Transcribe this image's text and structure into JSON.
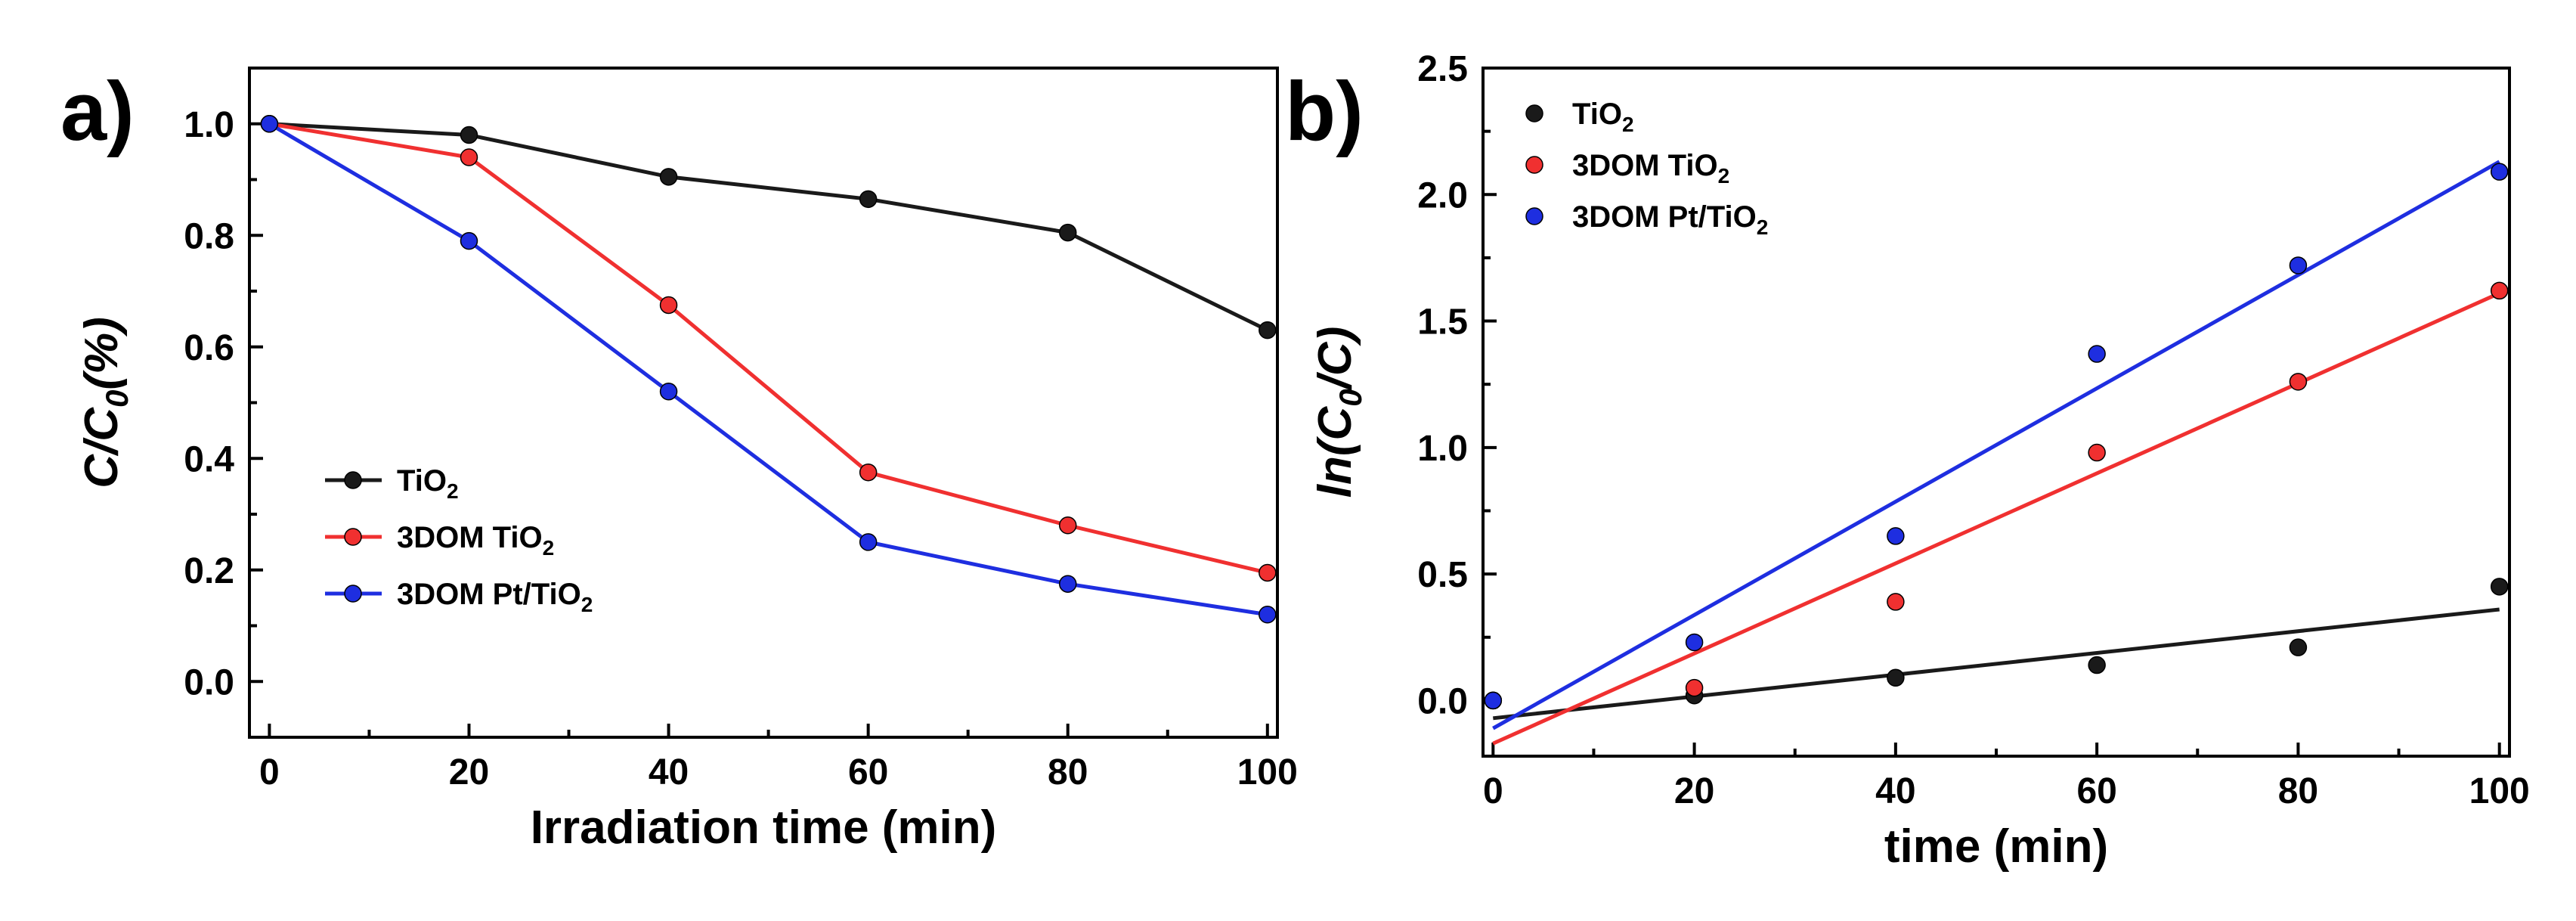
{
  "chart_data": [
    {
      "id": "a",
      "panel_label": "a)",
      "type": "line",
      "xlabel": "Irradiation time (min)",
      "ylabel": {
        "prefix": "C/C",
        "sub": "0",
        "suffix": "(%)"
      },
      "xlim": [
        -2,
        101
      ],
      "ylim": [
        -0.1,
        1.1
      ],
      "xticks": [
        0,
        20,
        40,
        60,
        80,
        100
      ],
      "xtick_labels": [
        "0",
        "20",
        "40",
        "60",
        "80",
        "100"
      ],
      "yticks": [
        0.0,
        0.2,
        0.4,
        0.6,
        0.8,
        1.0
      ],
      "ytick_labels": [
        "0.0",
        "0.2",
        "0.4",
        "0.6",
        "0.8",
        "1.0"
      ],
      "legend_position": "lower-left",
      "x": [
        0,
        20,
        40,
        60,
        80,
        100
      ],
      "series": [
        {
          "name": "TiO2",
          "label": {
            "main": "TiO",
            "sub": "2",
            "tail": ""
          },
          "color": "#1a1a1a",
          "values": [
            1.0,
            0.98,
            0.905,
            0.865,
            0.805,
            0.63
          ]
        },
        {
          "name": "3DOM TiO2",
          "label": {
            "main": "3DOM TiO",
            "sub": "2",
            "tail": ""
          },
          "color": "#f03030",
          "values": [
            1.0,
            0.94,
            0.675,
            0.375,
            0.28,
            0.195
          ]
        },
        {
          "name": "3DOM Pt/TiO2",
          "label": {
            "main": "3DOM Pt/TiO",
            "sub": "2",
            "tail": ""
          },
          "color": "#1e2ee0",
          "values": [
            1.0,
            0.79,
            0.52,
            0.25,
            0.175,
            0.12
          ]
        }
      ]
    },
    {
      "id": "b",
      "panel_label": "b)",
      "type": "scatter",
      "xlabel": "time (min)",
      "ylabel": {
        "prefix": "ln(C",
        "sub": "0",
        "suffix": "/C)"
      },
      "xlim": [
        -1,
        101
      ],
      "ylim": [
        -0.22,
        2.5
      ],
      "xticks": [
        0,
        20,
        40,
        60,
        80,
        100
      ],
      "xtick_labels": [
        "0",
        "20",
        "40",
        "60",
        "80",
        "100"
      ],
      "yticks": [
        0.0,
        0.5,
        1.0,
        1.5,
        2.0,
        2.5
      ],
      "ytick_labels": [
        "0.0",
        "0.5",
        "1.0",
        "1.5",
        "2.0",
        "2.5"
      ],
      "legend_position": "top-left",
      "x": [
        0,
        20,
        40,
        60,
        80,
        100
      ],
      "series": [
        {
          "name": "TiO2",
          "label": {
            "main": "TiO",
            "sub": "2",
            "tail": ""
          },
          "color": "#1a1a1a",
          "values": [
            0.0,
            0.02,
            0.09,
            0.14,
            0.21,
            0.45
          ],
          "fit": [
            -0.07,
            0.36
          ]
        },
        {
          "name": "3DOM TiO2",
          "label": {
            "main": "3DOM TiO",
            "sub": "2",
            "tail": ""
          },
          "color": "#f03030",
          "values": [
            0.0,
            0.05,
            0.39,
            0.98,
            1.26,
            1.62
          ],
          "fit": [
            -0.17,
            1.61
          ]
        },
        {
          "name": "3DOM Pt/TiO2",
          "label": {
            "main": "3DOM Pt/TiO",
            "sub": "2",
            "tail": ""
          },
          "color": "#1e2ee0",
          "values": [
            0.0,
            0.23,
            0.65,
            1.37,
            1.72,
            2.09
          ],
          "fit": [
            -0.11,
            2.13
          ]
        }
      ]
    }
  ]
}
